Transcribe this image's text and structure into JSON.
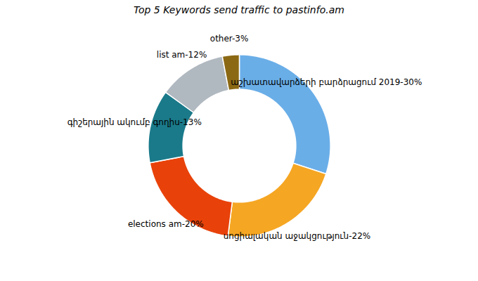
{
  "chart_data": {
    "type": "donut",
    "title": "Top 5 Keywords send traffic to pastinfo.am",
    "categories": [
      "աշխատավարձերի բարձրացում 2019-30%",
      "սոցիալական աջակցություն-22%",
      "elections am-20%",
      "գիշերային ակումբ գողիս-13%",
      "list am-12%",
      "other-3%"
    ],
    "values": [
      30,
      22,
      20,
      13,
      12,
      3
    ],
    "colors": [
      "#6aaee8",
      "#f5a623",
      "#e8420a",
      "#1a7a8a",
      "#b0b8c0",
      "#8b6914"
    ]
  }
}
